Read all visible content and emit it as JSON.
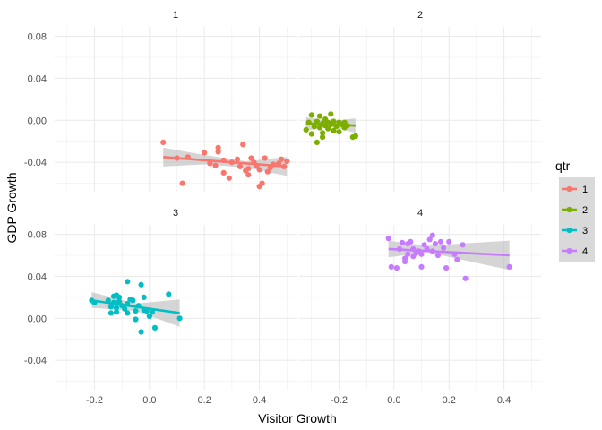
{
  "chart_data": {
    "type": "scatter",
    "xlabel": "Visitor Growth",
    "ylabel": "GDP Growth",
    "xlim": [
      -0.345,
      0.535
    ],
    "ylim": [
      -0.068,
      0.089
    ],
    "x_ticks": [
      -0.2,
      0.0,
      0.2,
      0.4
    ],
    "x_tick_labels": [
      "-0.2",
      "0.0",
      "0.2",
      "0.4"
    ],
    "y_ticks": [
      -0.04,
      0.0,
      0.04,
      0.08
    ],
    "y_tick_labels": [
      "-0.04",
      "0.00",
      "0.04",
      "0.08"
    ],
    "grid": true,
    "layout": "facet_wrap 2x2",
    "legend": {
      "title": "qtr",
      "placement": "right",
      "entries": [
        "1",
        "2",
        "3",
        "4"
      ]
    },
    "colors": {
      "1": "#F8766D",
      "2": "#7CAE00",
      "3": "#00BFC4",
      "4": "#C77CFF",
      "ribbon": "#BEBEBE",
      "grid": "#EBEBEB"
    },
    "facets": [
      {
        "label": "1",
        "series": "1",
        "points": [
          [
            0.05,
            -0.021
          ],
          [
            0.1,
            -0.036
          ],
          [
            0.12,
            -0.06
          ],
          [
            0.14,
            -0.035
          ],
          [
            0.2,
            -0.031
          ],
          [
            0.22,
            -0.041
          ],
          [
            0.24,
            -0.043
          ],
          [
            0.25,
            -0.026
          ],
          [
            0.25,
            -0.03
          ],
          [
            0.27,
            -0.038
          ],
          [
            0.27,
            -0.05
          ],
          [
            0.29,
            -0.055
          ],
          [
            0.3,
            -0.04
          ],
          [
            0.32,
            -0.037
          ],
          [
            0.33,
            -0.044
          ],
          [
            0.34,
            -0.023
          ],
          [
            0.35,
            -0.048
          ],
          [
            0.36,
            -0.046
          ],
          [
            0.36,
            -0.052
          ],
          [
            0.37,
            -0.036
          ],
          [
            0.38,
            -0.04
          ],
          [
            0.39,
            -0.043
          ],
          [
            0.4,
            -0.047
          ],
          [
            0.4,
            -0.063
          ],
          [
            0.41,
            -0.06
          ],
          [
            0.42,
            -0.036
          ],
          [
            0.43,
            -0.049
          ],
          [
            0.44,
            -0.045
          ],
          [
            0.45,
            -0.042
          ],
          [
            0.47,
            -0.041
          ],
          [
            0.48,
            -0.037
          ],
          [
            0.49,
            -0.044
          ],
          [
            0.5,
            -0.039
          ]
        ],
        "fit": {
          "x": [
            0.05,
            0.5
          ],
          "y": [
            -0.035,
            -0.044
          ]
        },
        "ribbon": {
          "x": [
            0.05,
            0.2,
            0.35,
            0.5
          ],
          "lower": [
            -0.044,
            -0.042,
            -0.045,
            -0.053
          ],
          "upper": [
            -0.026,
            -0.033,
            -0.039,
            -0.035
          ]
        }
      },
      {
        "label": "2",
        "series": "2",
        "points": [
          [
            -0.32,
            -0.009
          ],
          [
            -0.31,
            -0.002
          ],
          [
            -0.3,
            0.005
          ],
          [
            -0.3,
            -0.013
          ],
          [
            -0.29,
            -0.006
          ],
          [
            -0.28,
            -0.001
          ],
          [
            -0.28,
            -0.021
          ],
          [
            -0.27,
            0.004
          ],
          [
            -0.27,
            -0.007
          ],
          [
            -0.26,
            -0.003
          ],
          [
            -0.26,
            -0.012
          ],
          [
            -0.26,
            -0.016
          ],
          [
            -0.25,
            0.001
          ],
          [
            -0.25,
            -0.005
          ],
          [
            -0.24,
            -0.002
          ],
          [
            -0.24,
            -0.008
          ],
          [
            -0.23,
            -0.004
          ],
          [
            -0.23,
            0.006
          ],
          [
            -0.22,
            -0.01
          ],
          [
            -0.22,
            -0.001
          ],
          [
            -0.21,
            -0.006
          ],
          [
            -0.2,
            -0.002
          ],
          [
            -0.2,
            -0.011
          ],
          [
            -0.19,
            -0.004
          ],
          [
            -0.18,
            -0.007
          ],
          [
            -0.18,
            -0.002
          ],
          [
            -0.17,
            -0.005
          ],
          [
            -0.15,
            -0.016
          ],
          [
            -0.14,
            -0.015
          ]
        ],
        "fit": {
          "x": [
            -0.32,
            -0.14
          ],
          "y": [
            -0.003,
            -0.005
          ]
        },
        "ribbon": {
          "x": [
            -0.32,
            -0.23,
            -0.14
          ],
          "lower": [
            -0.01,
            -0.006,
            -0.012
          ],
          "upper": [
            0.003,
            -0.001,
            0.002
          ]
        }
      },
      {
        "label": "3",
        "series": "3",
        "points": [
          [
            -0.21,
            0.017
          ],
          [
            -0.2,
            0.015
          ],
          [
            -0.15,
            0.017
          ],
          [
            -0.14,
            0.011
          ],
          [
            -0.14,
            0.005
          ],
          [
            -0.13,
            0.021
          ],
          [
            -0.13,
            0.015
          ],
          [
            -0.12,
            0.022
          ],
          [
            -0.12,
            0.01
          ],
          [
            -0.12,
            0.006
          ],
          [
            -0.11,
            0.02
          ],
          [
            -0.11,
            0.016
          ],
          [
            -0.1,
            0.012
          ],
          [
            -0.09,
            0.009
          ],
          [
            -0.08,
            0.035
          ],
          [
            -0.08,
            0.014
          ],
          [
            -0.08,
            0.005
          ],
          [
            -0.07,
            0.018
          ],
          [
            -0.06,
            0.017
          ],
          [
            -0.05,
            0.007
          ],
          [
            -0.05,
            -0.001
          ],
          [
            -0.04,
            0.012
          ],
          [
            -0.03,
            0.032
          ],
          [
            -0.03,
            -0.013
          ],
          [
            -0.02,
            0.02
          ],
          [
            -0.02,
            0.008
          ],
          [
            -0.01,
            0.007
          ],
          [
            0.0,
            0.002
          ],
          [
            0.01,
            0.006
          ],
          [
            0.02,
            -0.009
          ],
          [
            0.07,
            0.023
          ],
          [
            0.11,
            0.0
          ]
        ],
        "fit": {
          "x": [
            -0.21,
            0.11
          ],
          "y": [
            0.017,
            0.005
          ]
        },
        "ribbon": {
          "x": [
            -0.21,
            -0.05,
            0.11
          ],
          "lower": [
            0.01,
            0.007,
            -0.008
          ],
          "upper": [
            0.025,
            0.014,
            0.018
          ]
        }
      },
      {
        "label": "4",
        "series": "4",
        "points": [
          [
            -0.02,
            0.076
          ],
          [
            -0.01,
            0.049
          ],
          [
            0.01,
            0.048
          ],
          [
            0.02,
            0.066
          ],
          [
            0.03,
            0.072
          ],
          [
            0.04,
            0.054
          ],
          [
            0.04,
            0.057
          ],
          [
            0.05,
            0.061
          ],
          [
            0.05,
            0.071
          ],
          [
            0.06,
            0.073
          ],
          [
            0.07,
            0.066
          ],
          [
            0.07,
            0.059
          ],
          [
            0.08,
            0.062
          ],
          [
            0.09,
            0.064
          ],
          [
            0.1,
            0.061
          ],
          [
            0.1,
            0.049
          ],
          [
            0.11,
            0.07
          ],
          [
            0.12,
            0.066
          ],
          [
            0.13,
            0.075
          ],
          [
            0.14,
            0.079
          ],
          [
            0.14,
            0.064
          ],
          [
            0.15,
            0.071
          ],
          [
            0.16,
            0.06
          ],
          [
            0.17,
            0.073
          ],
          [
            0.18,
            0.067
          ],
          [
            0.19,
            0.048
          ],
          [
            0.2,
            0.073
          ],
          [
            0.22,
            0.061
          ],
          [
            0.23,
            0.056
          ],
          [
            0.25,
            0.07
          ],
          [
            0.26,
            0.038
          ],
          [
            0.42,
            0.049
          ]
        ],
        "fit": {
          "x": [
            -0.02,
            0.42
          ],
          "y": [
            0.066,
            0.06
          ]
        },
        "ribbon": {
          "x": [
            -0.02,
            0.12,
            0.42
          ],
          "lower": [
            0.058,
            0.063,
            0.046
          ],
          "upper": [
            0.074,
            0.069,
            0.074
          ]
        }
      }
    ]
  }
}
